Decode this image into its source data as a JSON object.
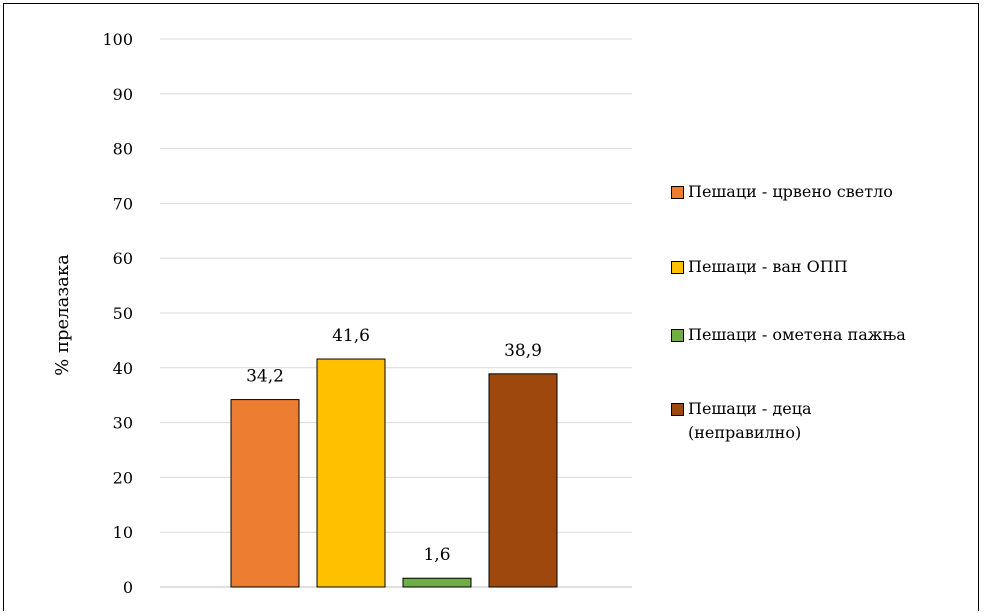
{
  "chart_data": {
    "type": "bar",
    "title": "",
    "xlabel": "",
    "ylabel": "% прелазака",
    "ylim": [
      0,
      100
    ],
    "yticks": [
      0,
      10,
      20,
      30,
      40,
      50,
      60,
      70,
      80,
      90,
      100
    ],
    "grid": true,
    "legend_position": "right",
    "series": [
      {
        "name": "Пешаци - црвено светло",
        "value": 34.2,
        "label": "34,2",
        "color": "#ED7D31"
      },
      {
        "name": "Пешаци - ван ОПП",
        "value": 41.6,
        "label": "41,6",
        "color": "#FFC000"
      },
      {
        "name": "Пешаци - ометена пажња",
        "value": 1.6,
        "label": "1,6",
        "color": "#70AD47"
      },
      {
        "name": "Пешаци - деца (неправилно)",
        "value": 38.9,
        "label": "38,9",
        "color": "#9E480E"
      }
    ]
  }
}
